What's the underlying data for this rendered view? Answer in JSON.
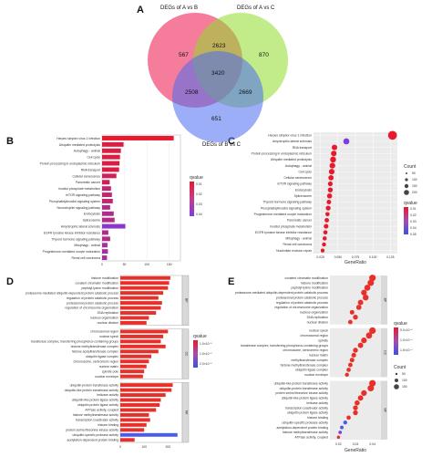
{
  "panels": {
    "A": "A",
    "B": "B",
    "C": "C",
    "D": "D",
    "E": "E"
  },
  "venn": {
    "set_labels": [
      "DEGs of A vs B",
      "DEGs of A vs C",
      "DEGs of B vs C"
    ],
    "regions": {
      "a_only": "567",
      "b_only": "870",
      "c_only": "651",
      "ab": "2623",
      "ac": "2508",
      "bc": "2669",
      "abc": "3420"
    },
    "colors": [
      "#f2507a",
      "#8fdc2a",
      "#4a6cf0"
    ]
  },
  "chart_data": [
    {
      "panel": "B",
      "type": "bar",
      "categories": [
        "Herpes simplex virus 1 infection",
        "Ubiquitin mediated proteolysis",
        "Autophagy - animal",
        "Cell cycle",
        "Protein processing in endoplasmic reticulum",
        "RNA transport",
        "Cellular senescence",
        "Pancreatic cancer",
        "Inositol phosphate metabolism",
        "mTOR signaling pathway",
        "Phosphatidylinositol signaling system",
        "Neurotrophin signaling pathway",
        "Endocytosis",
        "Spliceosome",
        "Amyotrophic lateral sclerosis",
        "EGFR tyrosine kinase inhibitor resistance",
        "Thyroid hormone signaling pathway",
        "Mitophagy - animal",
        "Progesterone-mediated oocyte maturation",
        "Renal cell carcinoma"
      ],
      "values": [
        160,
        48,
        42,
        40,
        39,
        38,
        32,
        17,
        20,
        22,
        24,
        18,
        26,
        28,
        52,
        14,
        18,
        12,
        13,
        11
      ],
      "qvalue": [
        0.0,
        0.005,
        0.005,
        0.005,
        0.005,
        0.005,
        0.01,
        0.01,
        0.015,
        0.015,
        0.015,
        0.02,
        0.02,
        0.02,
        0.035,
        0.02,
        0.02,
        0.025,
        0.025,
        0.025
      ],
      "xticks": [
        "0",
        "50",
        "100",
        "150"
      ],
      "xlim": [
        0,
        175
      ],
      "legend_title": "qvalue",
      "legend_ticks": [
        "0.01",
        "0.02",
        "0.03",
        "0.04"
      ],
      "color_low": "#e8192c",
      "color_high": "#7b3de0"
    },
    {
      "panel": "C",
      "type": "scatter",
      "categories": [
        "Herpes simplex virus 1 infection",
        "Amyotrophic lateral sclerosis",
        "RNA transport",
        "Protein processing in endoplasmic reticulum",
        "Ubiquitin mediated proteolysis",
        "Autophagy - animal",
        "Cell cycle",
        "Cellular senescence",
        "mTOR signaling pathway",
        "Endocytosis",
        "Spliceosome",
        "Thyroid hormone signaling pathway",
        "Phosphatidylinositol signaling system",
        "Progesterone-mediated oocyte maturation",
        "Pancreatic cancer",
        "Inositol phosphate metabolism",
        "EGFR tyrosine kinase inhibitor resistance",
        "Mitophagy - animal",
        "Renal cell carcinoma",
        "Nucleotide excision repair"
      ],
      "x": [
        0.128,
        0.062,
        0.045,
        0.044,
        0.043,
        0.042,
        0.041,
        0.04,
        0.039,
        0.039,
        0.038,
        0.037,
        0.036,
        0.035,
        0.034,
        0.033,
        0.032,
        0.031,
        0.03,
        0.028
      ],
      "count": [
        160,
        52,
        38,
        39,
        48,
        42,
        40,
        32,
        22,
        26,
        28,
        18,
        24,
        13,
        17,
        20,
        14,
        12,
        11,
        9
      ],
      "xticks": [
        "0.025",
        "0.050",
        "0.075",
        "0.100",
        "0.125"
      ],
      "xlim": [
        0.015,
        0.135
      ],
      "xlabel": "GeneRatio",
      "size_legend_title": "Count",
      "size_legend": [
        "50",
        "100",
        "150",
        "200"
      ],
      "color_legend_title": "qvalue",
      "color_legend_ticks": [
        "0.01",
        "0.02",
        "0.03",
        "0.04",
        "0.05"
      ]
    },
    {
      "panel": "D",
      "type": "bar",
      "groups": [
        {
          "name": "BP",
          "categories": [
            "histone modification",
            "covalent chromatin modification",
            "peptidyl-lysine modification",
            "proteasome-mediated ubiquitin-dependent protein catabolic process",
            "regulation of protein catabolic process",
            "proteasomal protein catabolic process",
            "regulation of chromosome organization",
            "DNA replication",
            "nucleus organization",
            "nuclear division"
          ],
          "values": [
            210,
            205,
            200,
            180,
            160,
            175,
            170,
            150,
            120,
            110
          ]
        },
        {
          "name": "CC",
          "categories": [
            "chromosomal region",
            "nuclear speck",
            "transferase complex, transferring phosphorus-containing groups",
            "histone methyltransferase complex",
            "histone acetyltransferase complex",
            "ubiquitin ligase complex",
            "chromosome, centromeric region",
            "nuclear matrix",
            "spindle pole",
            "nuclear envelope"
          ],
          "values": [
            200,
            180,
            170,
            190,
            160,
            130,
            120,
            110,
            100,
            95
          ]
        },
        {
          "name": "MF",
          "categories": [
            "ubiquitin-protein transferase activity",
            "ubiquitin-like protein transferase activity",
            "helicase activity",
            "ubiquitin-like protein ligase activity",
            "ubiquitin protein ligase activity",
            "ATPase activity, coupled",
            "histone methyltransferase activity",
            "transcription coactivator activity",
            "histone binding",
            "protein serine/threonine kinase activity",
            "ubiquitin-specific protease activity",
            "acetylation-dependent protein binding"
          ],
          "values": [
            220,
            215,
            190,
            170,
            165,
            150,
            120,
            125,
            110,
            100,
            240,
            60
          ]
        }
      ],
      "xticks": [
        "0",
        "100",
        "200"
      ],
      "xlim": [
        0,
        260
      ],
      "legend_title": "qvalue",
      "legend_ticks": [
        "1.0×10⁻⁵",
        "1.5×10⁻⁵",
        "2.0×10⁻⁵"
      ]
    },
    {
      "panel": "E",
      "type": "scatter",
      "groups": [
        {
          "name": "BP",
          "categories": [
            "covalent chromatin modification",
            "histone modification",
            "peptidyl-lysine modification",
            "proteasome-mediated ubiquitin-dependent protein catabolic process",
            "proteasomal protein catabolic process",
            "regulation of protein catabolic process",
            "regulation of chromosome organization",
            "nucleus organization",
            "DNA replication",
            "nuclear division"
          ],
          "x": [
            0.04,
            0.039,
            0.037,
            0.035,
            0.036,
            0.033,
            0.032,
            0.028,
            0.03,
            0.027
          ]
        },
        {
          "name": "CC",
          "categories": [
            "nuclear speck",
            "chromosomal region",
            "spindle",
            "transferase complex, transferring phosphorus-containing groups",
            "chromosome, centromeric region",
            "nuclear matrix",
            "methyltransferase complex",
            "histone methyltransferase complex",
            "ubiquitin ligase complex",
            "nuclear envelope"
          ],
          "x": [
            0.04,
            0.038,
            0.035,
            0.033,
            0.03,
            0.029,
            0.028,
            0.027,
            0.026,
            0.025
          ]
        },
        {
          "name": "MF",
          "categories": [
            "ubiquitin-like protein transferase activity",
            "ubiquitin-protein transferase activity",
            "protein serine/threonine kinase activity",
            "ubiquitin-like protein ligase activity",
            "helicase activity",
            "transcription coactivator activity",
            "ubiquitin protein ligase activity",
            "histone binding",
            "ubiquitin-specific protease activity",
            "acetylation-dependent protein binding",
            "histone methyltransferase activity",
            "ATPase activity, coupled"
          ],
          "x": [
            0.04,
            0.039,
            0.035,
            0.033,
            0.031,
            0.03,
            0.03,
            0.026,
            0.024,
            0.022,
            0.021,
            0.02
          ]
        }
      ],
      "xticks": [
        "0.02",
        "0.03",
        "0.04"
      ],
      "xlim": [
        0.015,
        0.045
      ],
      "xlabel": "GeneRatio",
      "color_legend_title": "qvalue",
      "color_legend_ticks": [
        "5.0×10⁻⁵",
        "1.0×10⁻⁴",
        "1.5×10⁻⁴"
      ],
      "size_legend_title": "Count",
      "size_legend": [
        "50",
        "100",
        "150"
      ]
    }
  ]
}
